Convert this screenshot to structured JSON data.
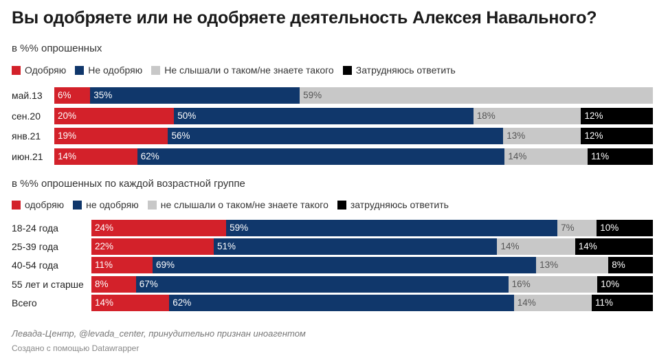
{
  "title": "Вы одобряете или не одобряете деятельность Алексея Навального?",
  "colors": {
    "approve": "#d3212a",
    "disapprove": "#10376b",
    "unknown": "#c8c8c8",
    "hard": "#000000"
  },
  "chart_data": [
    {
      "type": "bar",
      "stacked": true,
      "orientation": "horizontal",
      "subtitle": "в %% опрошенных",
      "legend": [
        "Одобряю",
        "Не одобряю",
        "Не слышали о таком/не знаете такого",
        "Затрудняюсь ответить"
      ],
      "categories": [
        "май.13",
        "сен.20",
        "янв.21",
        "июн.21"
      ],
      "series": [
        {
          "name": "Одобряю",
          "values": [
            6,
            20,
            19,
            14
          ]
        },
        {
          "name": "Не одобряю",
          "values": [
            35,
            50,
            56,
            62
          ]
        },
        {
          "name": "Не слышали о таком/не знаете такого",
          "values": [
            59,
            18,
            13,
            14
          ]
        },
        {
          "name": "Затрудняюсь ответить",
          "values": [
            null,
            12,
            12,
            11
          ]
        }
      ]
    },
    {
      "type": "bar",
      "stacked": true,
      "orientation": "horizontal",
      "subtitle": "в %% опрошенных по каждой возрастной группе",
      "legend": [
        "одобряю",
        "не одобряю",
        "не слышали о таком/не знаете такого",
        "затрудняюсь ответить"
      ],
      "categories": [
        "18-24 года",
        "25-39 года",
        "40-54 года",
        "55 лет и старше",
        "Всего"
      ],
      "series": [
        {
          "name": "одобряю",
          "values": [
            24,
            22,
            11,
            8,
            14
          ]
        },
        {
          "name": "не одобряю",
          "values": [
            59,
            51,
            69,
            67,
            62
          ]
        },
        {
          "name": "не слышали о таком/не знаете такого",
          "values": [
            7,
            14,
            13,
            16,
            14
          ]
        },
        {
          "name": "затрудняюсь ответить",
          "values": [
            10,
            14,
            8,
            10,
            11
          ]
        }
      ]
    }
  ],
  "footer": {
    "source": "Левада-Центр, @levada_center, принудительно признан иноагентом",
    "credit": "Создано с помощью Datawrapper"
  }
}
